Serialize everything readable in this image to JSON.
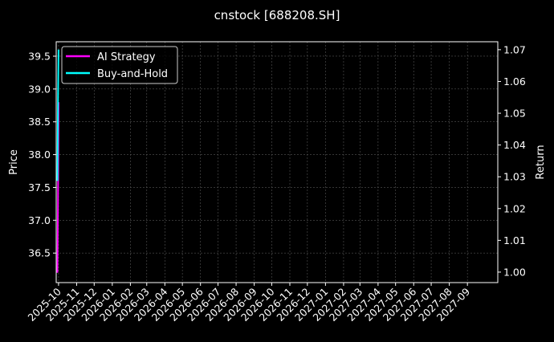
{
  "chart_data": {
    "type": "line",
    "title": "cnstock [688208.SH]",
    "ylabel": "Price",
    "y2label": "Return",
    "xlabel": "",
    "ylim": [
      36.05,
      39.72
    ],
    "y2lim": [
      0.9967,
      1.0725
    ],
    "xlim": [
      "2025-09-27",
      "2027-10-23"
    ],
    "yticks": [
      "36.5",
      "37.0",
      "37.5",
      "38.0",
      "38.5",
      "39.0",
      "39.5"
    ],
    "y2ticks": [
      "1.00",
      "1.01",
      "1.02",
      "1.03",
      "1.04",
      "1.05",
      "1.06",
      "1.07"
    ],
    "xticks": [
      "2025-10",
      "2025-11",
      "2025-12",
      "2026-01",
      "2026-02",
      "2026-03",
      "2026-04",
      "2026-05",
      "2026-06",
      "2026-07",
      "2026-08",
      "2026-09",
      "2026-10",
      "2026-11",
      "2026-12",
      "2027-01",
      "2027-02",
      "2027-03",
      "2027-04",
      "2027-05",
      "2027-06",
      "2027-07",
      "2027-08",
      "2027-09"
    ],
    "grid": true,
    "legend_position": "top-left",
    "series": [
      {
        "name": "AI Strategy",
        "color": "#ff00ff",
        "x": [
          "2025-09-29",
          "2025-09-30",
          "2025-10-01"
        ],
        "y": [
          36.2,
          37.25,
          38.8
        ]
      },
      {
        "name": "Buy-and-Hold",
        "color": "#00ffff",
        "x": [
          "2025-09-29",
          "2025-09-30",
          "2025-10-01"
        ],
        "y": [
          37.6,
          38.8,
          39.6
        ]
      }
    ]
  }
}
